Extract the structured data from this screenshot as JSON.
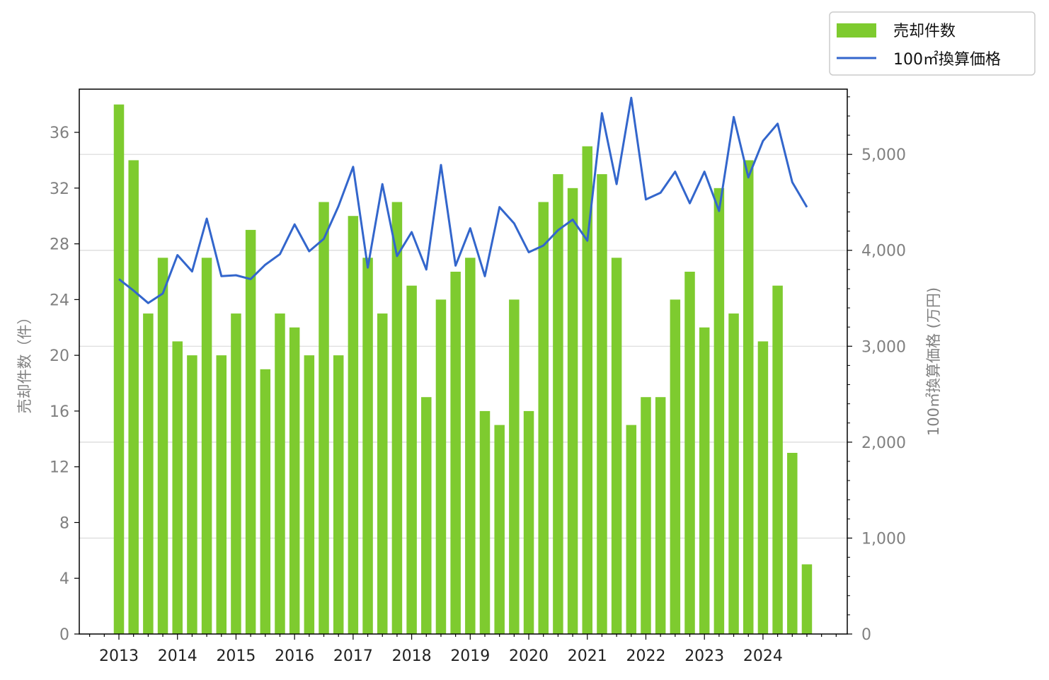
{
  "chart_data": {
    "type": "bar",
    "title": "",
    "ylabel": "売却件数（件）",
    "y2label": "100㎡換算価格 (万円)",
    "ylim": [
      0,
      39.1
    ],
    "y2lim": [
      0,
      5680
    ],
    "yticks": [
      "0",
      "4",
      "8",
      "12",
      "16",
      "20",
      "24",
      "28",
      "32",
      "36"
    ],
    "y2ticks": [
      "0",
      "1,000",
      "2,000",
      "3,000",
      "4,000",
      "5,000"
    ],
    "years": [
      "2013",
      "2014",
      "2015",
      "2016",
      "2017",
      "2018",
      "2019",
      "2020",
      "2021",
      "2022",
      "2023",
      "2024"
    ],
    "grid": "horizontal at right-axis ticks",
    "legend_position": "top-right",
    "series": [
      {
        "name": "売却件数",
        "kind": "bar",
        "axis": "left",
        "color": "#7ecb2f",
        "values": [
          38,
          34,
          23,
          27,
          21,
          20,
          27,
          20,
          23,
          29,
          19,
          23,
          22,
          20,
          31,
          20,
          30,
          27,
          23,
          31,
          25,
          17,
          24,
          26,
          27,
          16,
          15,
          24,
          16,
          31,
          33,
          32,
          35,
          33,
          27,
          15,
          17,
          17,
          24,
          26,
          22,
          32,
          23,
          34,
          21,
          25,
          13,
          5
        ]
      },
      {
        "name": "100㎡換算価格",
        "kind": "line",
        "axis": "right",
        "color": "#3366cc",
        "values": [
          3700,
          3580,
          3450,
          3550,
          3950,
          3780,
          4330,
          3730,
          3740,
          3700,
          3850,
          3960,
          4270,
          3990,
          4120,
          4460,
          4870,
          3820,
          4690,
          3940,
          4190,
          3800,
          4890,
          3840,
          4230,
          3730,
          4450,
          4280,
          3980,
          4050,
          4210,
          4320,
          4100,
          5430,
          4690,
          5590,
          4530,
          4600,
          4820,
          4490,
          4820,
          4410,
          5390,
          4760,
          5140,
          5320,
          4710,
          4450
        ]
      }
    ]
  }
}
